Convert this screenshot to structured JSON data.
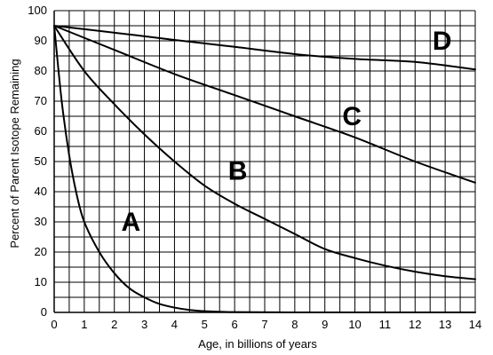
{
  "chart_data": {
    "type": "line",
    "title": "",
    "xlabel": "Age, in billions of years",
    "ylabel": "Percent of Parent Isotope Remaining",
    "xlim": [
      0,
      14
    ],
    "ylim": [
      0,
      100
    ],
    "x_ticks": [
      0,
      1,
      2,
      3,
      4,
      5,
      6,
      7,
      8,
      9,
      10,
      11,
      12,
      13,
      14
    ],
    "y_ticks": [
      0,
      10,
      20,
      30,
      40,
      50,
      60,
      70,
      80,
      90,
      100
    ],
    "grid": true,
    "legend": "none",
    "series": [
      {
        "name": "A",
        "x": [
          0,
          0.25,
          0.5,
          0.75,
          1,
          1.5,
          2,
          2.5,
          3,
          3.5,
          4,
          4.5,
          5,
          6,
          8,
          10,
          12,
          14
        ],
        "y": [
          95,
          70,
          52,
          39,
          30,
          20,
          13,
          8,
          5,
          2.8,
          1.6,
          0.8,
          0.4,
          0.1,
          0,
          0,
          0,
          0
        ]
      },
      {
        "name": "B",
        "x": [
          0,
          1,
          2,
          3,
          4,
          5,
          6,
          7,
          8,
          9,
          10,
          11,
          12,
          13,
          14
        ],
        "y": [
          95,
          80,
          69,
          59,
          50,
          42,
          36,
          31,
          26,
          21,
          18,
          15.5,
          13.5,
          12,
          11
        ]
      },
      {
        "name": "C",
        "x": [
          0,
          2,
          4,
          6,
          8,
          10,
          12,
          14
        ],
        "y": [
          95,
          87,
          79,
          72,
          65,
          58,
          50,
          43
        ]
      },
      {
        "name": "D",
        "x": [
          0,
          2,
          4,
          6,
          8,
          10,
          12,
          14
        ],
        "y": [
          95,
          92.7,
          90.3,
          88,
          85.6,
          84,
          83,
          80.5
        ]
      }
    ],
    "annotations": [
      {
        "text": "A",
        "x": 2.55,
        "y": 27
      },
      {
        "text": "B",
        "x": 6.1,
        "y": 44
      },
      {
        "text": "C",
        "x": 9.9,
        "y": 62
      },
      {
        "text": "D",
        "x": 12.9,
        "y": 87
      }
    ]
  }
}
